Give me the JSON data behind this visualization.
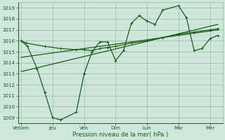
{
  "bg_color": "#cce8dc",
  "grid_color": "#9dbfaa",
  "line_color": "#1a5c1a",
  "tick_label_color": "#1a5c1a",
  "xlabel": "Pression niveau de la mer( hPa )",
  "xlabel_color": "#1a5c1a",
  "ylim": [
    1008.5,
    1019.5
  ],
  "yticks": [
    1009,
    1010,
    1011,
    1012,
    1013,
    1014,
    1015,
    1016,
    1017,
    1018,
    1019
  ],
  "xtick_labels": [
    "Ve6am",
    "Jeu",
    "Ven",
    "Dim",
    "Lun",
    "Mar",
    "Mer"
  ],
  "xtick_positions": [
    0,
    2,
    4,
    6,
    8,
    10,
    12
  ],
  "xlim": [
    -0.2,
    12.8
  ],
  "main_x": [
    0,
    0.4,
    1.0,
    1.5,
    2.0,
    2.5,
    3.5,
    4.0,
    4.5,
    5.0,
    5.5,
    6.0,
    6.5,
    7.0,
    7.5,
    8.0,
    8.5,
    9.0,
    10.0,
    10.5,
    11.0,
    11.5,
    12.0,
    12.5
  ],
  "main_y": [
    1016.0,
    1015.5,
    1013.5,
    1011.3,
    1009.0,
    1008.8,
    1009.5,
    1013.0,
    1015.0,
    1015.9,
    1015.9,
    1014.2,
    1015.1,
    1017.6,
    1018.3,
    1017.8,
    1017.5,
    1018.8,
    1019.2,
    1018.1,
    1015.1,
    1015.3,
    1016.2,
    1016.5
  ],
  "flat_x": [
    0,
    0.3,
    1.5,
    2.5,
    3.5,
    4.0,
    4.5,
    5.0,
    5.5,
    6.0,
    7.0,
    8.0,
    9.0,
    10.0,
    11.0,
    12.0,
    12.5
  ],
  "flat_y": [
    1016.0,
    1015.8,
    1015.5,
    1015.3,
    1015.2,
    1015.2,
    1015.1,
    1015.3,
    1015.4,
    1015.5,
    1015.8,
    1016.0,
    1016.3,
    1016.6,
    1016.8,
    1017.0,
    1017.1
  ],
  "trend1_x": [
    0,
    12.5
  ],
  "trend1_y": [
    1013.2,
    1017.5
  ],
  "trend2_x": [
    0,
    12.5
  ],
  "trend2_y": [
    1014.5,
    1017.0
  ]
}
